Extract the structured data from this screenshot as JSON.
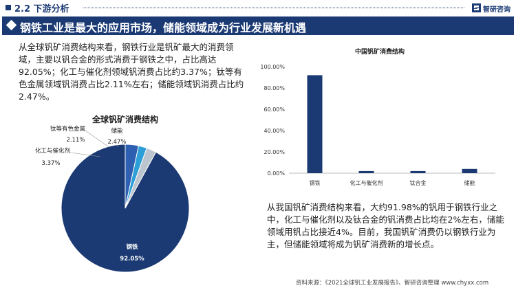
{
  "header": {
    "section_title": "2.2  下游分析",
    "logo_text": "智研咨询"
  },
  "banner": {
    "title": "钢铁工业是最大的应用市场，储能领域成为行业发展新机遇"
  },
  "paragraph_left": "从全球钒矿消费结构来看，钢铁行业是钒矿最大的消费领域，主要以钒合金的形式消费于钢铁之中，占比高达92.05%；化工与催化剂领域钒消费占比约3.37%；钛等有色金属领域钒消费占比2.11%左右；储能领域钒消费占比约2.47%。",
  "paragraph_right": "从我国钒矿消费结构来看，大约91.98%的钒用于钢铁行业之中，化工与催化剂以及钛合金的钒消费占比均在2%左右，储能领域用钒占比接近4%。目前，我国钒矿消费仍以钢铁行业为主，但储能领域将成为钒矿消费新的增长点。",
  "source": "资料来源：《2021全球钒工业发展报告》、智研咨询整理   www.chyxx.com",
  "colors": {
    "navy": "#1b3a73",
    "blue": "#2e5fb0",
    "cyan": "#2e9fd6",
    "grey": "#bcc5cf"
  },
  "chart_data": [
    {
      "type": "pie",
      "title": "全球钒矿消费结构",
      "series": [
        {
          "name": "钢铁",
          "value": 92.05,
          "label": "92.05%"
        },
        {
          "name": "化工与催化剂",
          "value": 3.37,
          "label": "3.37%"
        },
        {
          "name": "钛等有色金属",
          "value": 2.11,
          "label": "2.11%"
        },
        {
          "name": "储能",
          "value": 2.47,
          "label": "2.47%"
        }
      ]
    },
    {
      "type": "bar",
      "title": "中国钒矿消费结构",
      "categories": [
        "钢铁",
        "化工与催化剂",
        "钛合金",
        "储能"
      ],
      "values": [
        91.98,
        2.0,
        2.0,
        4.0
      ],
      "ylim": [
        0,
        100
      ],
      "yticks": [
        "0.00%",
        "20.00%",
        "40.00%",
        "60.00%",
        "80.00%",
        "100.00%"
      ],
      "grid": false
    }
  ]
}
